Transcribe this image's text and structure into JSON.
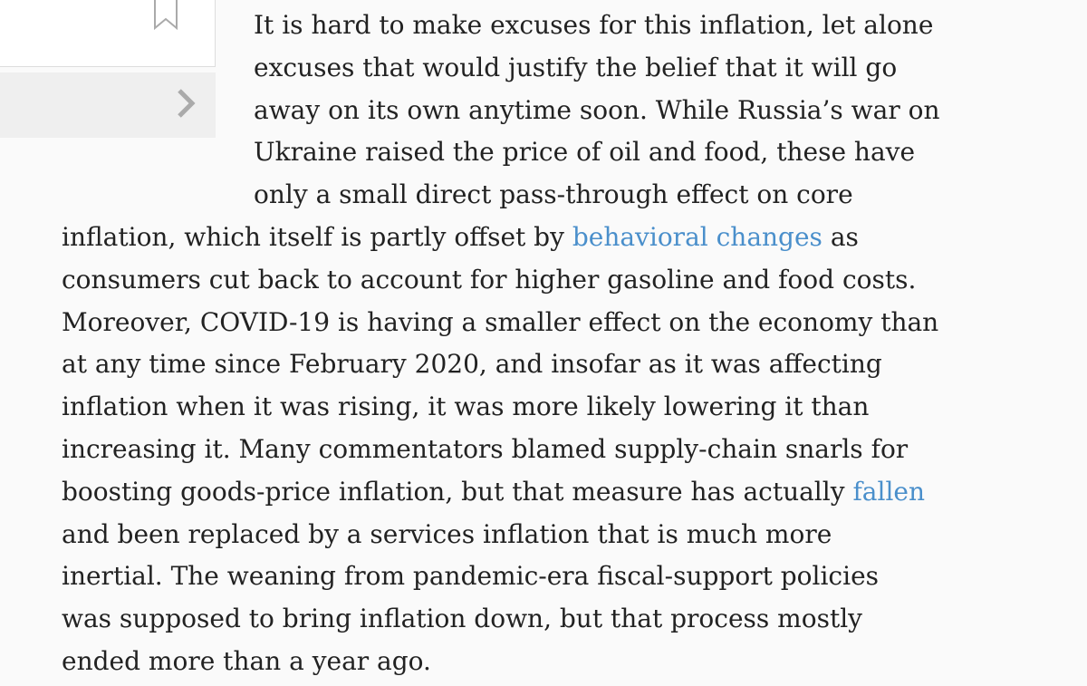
{
  "article": {
    "lines": [
      [
        {
          "text": "It is hard to make excuses for this inflation, let alone"
        }
      ],
      [
        {
          "text": "excuses that would justify the belief that it will go"
        }
      ],
      [
        {
          "text": "away on its own anytime soon. While Russia’s war on"
        }
      ],
      [
        {
          "text": "Ukraine raised the price of oil and food, these have"
        }
      ],
      [
        {
          "text": "only a small direct pass-through effect on core"
        }
      ],
      [
        {
          "text": "inflation, which itself is partly offset by "
        },
        {
          "link": "behavioral changes"
        },
        {
          "text": " as"
        }
      ],
      [
        {
          "text": "consumers cut back to account for higher gasoline and food costs."
        }
      ],
      [
        {
          "text": "Moreover, COVID-19 is having a smaller effect on the economy than"
        }
      ],
      [
        {
          "text": "at any time since February 2020, and insofar as it was affecting"
        }
      ],
      [
        {
          "text": "inflation when it was rising, it was more likely lowering it than"
        }
      ],
      [
        {
          "text": "increasing it. Many commentators blamed supply-chain snarls for"
        }
      ],
      [
        {
          "text": "boosting goods-price inflation, but that measure has actually "
        },
        {
          "link": "fallen"
        }
      ],
      [
        {
          "text": "and been replaced by a services inflation that is much more"
        }
      ],
      [
        {
          "text": "inertial. The weaning from pandemic-era fiscal-support policies"
        }
      ],
      [
        {
          "text": "was supposed to bring inflation down, but that process mostly"
        }
      ],
      [
        {
          "text": "ended more than a year ago."
        }
      ]
    ]
  }
}
